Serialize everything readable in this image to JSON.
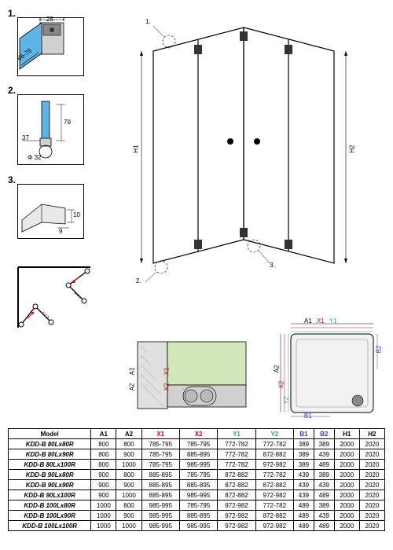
{
  "detail1": {
    "label": "1.",
    "dim_width": "25",
    "dim_height": "66-76"
  },
  "detail2": {
    "label": "2.",
    "dim_79": "79",
    "dim_37": "37",
    "dim_phi32": "Φ 32"
  },
  "detail3": {
    "label": "3.",
    "dim_9": "9",
    "dim_10": "10"
  },
  "iso_callouts": {
    "c1": "1.",
    "c2": "2.",
    "c3": "3."
  },
  "iso_dims": {
    "h1": "H1",
    "h2": "H2"
  },
  "plan_dims": {
    "a1": "A1",
    "a2": "A2",
    "x1": "X1",
    "x2": "X2",
    "y1": "Y1",
    "y2": "Y2",
    "b1": "B1",
    "b2": "B2"
  },
  "wall_dims": {
    "a1": "A1",
    "a2": "A2",
    "x1": "X1",
    "x2": "X2"
  },
  "table": {
    "headers": [
      "Model",
      "A1",
      "A2",
      "X1",
      "X2",
      "Y1",
      "Y2",
      "B1",
      "B2",
      "H1",
      "H2"
    ],
    "header_colors": [
      "",
      "",
      "",
      "red",
      "red",
      "green",
      "green",
      "blue",
      "blue",
      "",
      ""
    ],
    "rows": [
      [
        "KDD-B 80Lx80R",
        "800",
        "800",
        "785-795",
        "785-795",
        "772-782",
        "772-782",
        "389",
        "389",
        "2000",
        "2020"
      ],
      [
        "KDD-B 80Lx90R",
        "800",
        "900",
        "785-795",
        "885-895",
        "772-782",
        "872-882",
        "389",
        "439",
        "2000",
        "2020"
      ],
      [
        "KDD-B 80Lx100R",
        "800",
        "1000",
        "785-795",
        "985-995",
        "772-782",
        "972-982",
        "389",
        "489",
        "2000",
        "2020"
      ],
      [
        "KDD-B 90Lx80R",
        "900",
        "800",
        "885-895",
        "785-795",
        "872-882",
        "772-782",
        "439",
        "389",
        "2000",
        "2020"
      ],
      [
        "KDD-B 90Lx90R",
        "900",
        "900",
        "885-895",
        "885-895",
        "872-882",
        "872-882",
        "439",
        "439",
        "2000",
        "2020"
      ],
      [
        "KDD-B 90Lx100R",
        "900",
        "1000",
        "885-895",
        "985-995",
        "872-882",
        "972-982",
        "439",
        "489",
        "2000",
        "2020"
      ],
      [
        "KDD-B 100Lx80R",
        "1000",
        "800",
        "985-995",
        "785-795",
        "972-982",
        "772-782",
        "489",
        "389",
        "2000",
        "2020"
      ],
      [
        "KDD-B 100Lx90R",
        "1000",
        "900",
        "985-995",
        "885-895",
        "972-982",
        "872-882",
        "489",
        "439",
        "2000",
        "2020"
      ],
      [
        "KDD-B 100Lx100R",
        "1000",
        "1000",
        "985-995",
        "985-995",
        "972-982",
        "972-982",
        "489",
        "489",
        "2000",
        "2020"
      ]
    ]
  }
}
